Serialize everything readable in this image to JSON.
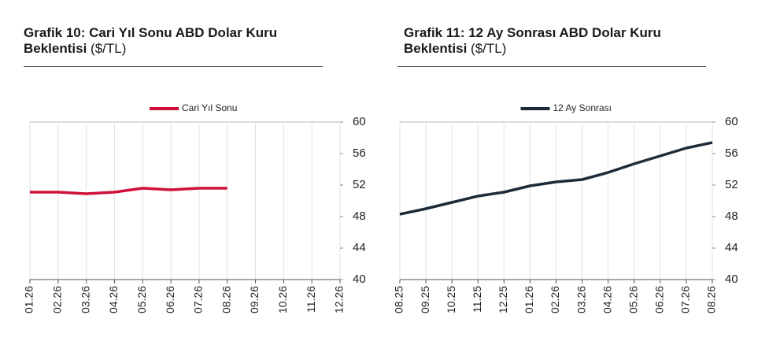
{
  "chart_data": [
    {
      "type": "line",
      "title": "Grafik 10: Cari Yıl Sonu ABD Dolar Kuru Beklentisi",
      "unit": "($/TL)",
      "categories": [
        "01.26",
        "02.26",
        "03.26",
        "04.26",
        "05.26",
        "06.26",
        "07.26",
        "08.26",
        "09.26",
        "10.26",
        "11.26",
        "12.26"
      ],
      "series": [
        {
          "name": "Cari Yıl Sonu",
          "color": "#d0103a",
          "values": [
            51.1,
            51.1,
            50.9,
            51.1,
            51.6,
            51.4,
            51.6,
            51.6,
            null,
            null,
            null,
            null
          ]
        }
      ],
      "ylim": [
        40,
        60
      ],
      "yticks": [
        40,
        44,
        48,
        52,
        56,
        60
      ],
      "grid": true,
      "legend": "top"
    },
    {
      "type": "line",
      "title": "Grafik 11: 12 Ay Sonrası ABD Dolar Kuru Beklentisi",
      "unit": "($/TL)",
      "categories": [
        "08.25",
        "09.25",
        "10.25",
        "11.25",
        "12.25",
        "01.26",
        "02.26",
        "03.26",
        "04.26",
        "05.26",
        "06.26",
        "07.26",
        "08.26"
      ],
      "series": [
        {
          "name": "12 Ay Sonrası",
          "color": "#1c2b3a",
          "values": [
            48.3,
            49.0,
            49.8,
            50.6,
            51.1,
            51.9,
            52.4,
            52.7,
            53.6,
            54.7,
            55.7,
            56.7,
            57.4
          ]
        }
      ],
      "ylim": [
        40,
        60
      ],
      "yticks": [
        40,
        44,
        48,
        52,
        56,
        60
      ],
      "grid": true,
      "legend": "top"
    }
  ]
}
